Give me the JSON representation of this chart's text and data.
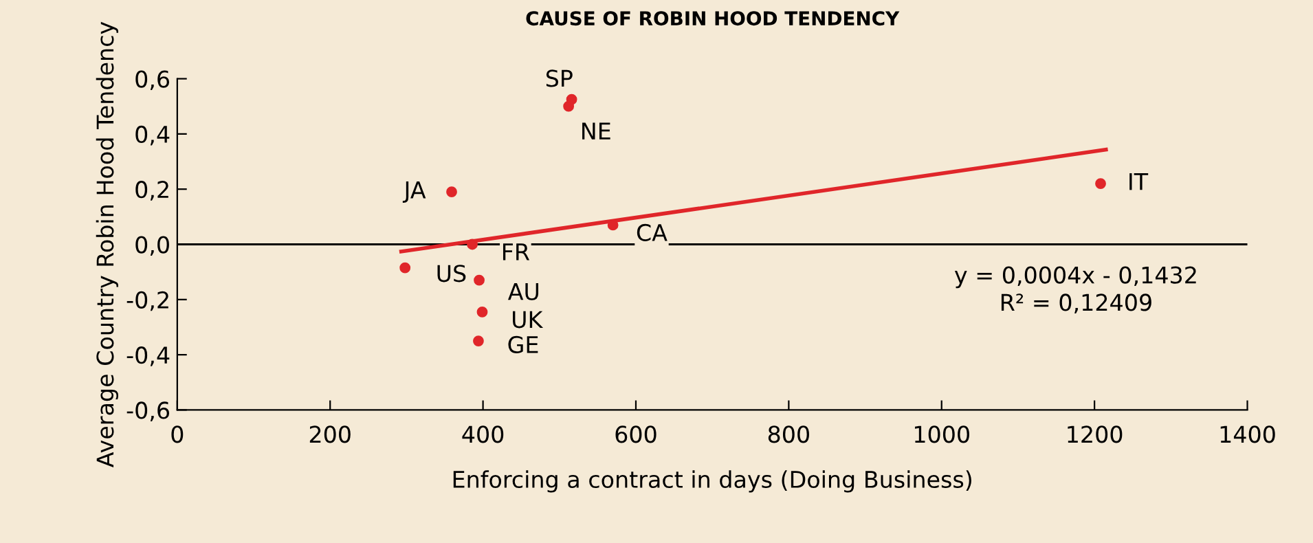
{
  "chart_data": {
    "type": "scatter",
    "title": "CAUSE OF ROBIN HOOD TENDENCY",
    "xlabel": "Enforcing a contract in days (Doing Business)",
    "ylabel": "Average Country Robin Hood Tendency",
    "xlim": [
      0,
      1400
    ],
    "xticks": [
      0,
      200,
      400,
      600,
      800,
      1000,
      1200,
      1400
    ],
    "ylim": [
      -0.6,
      0.6
    ],
    "yticks": [
      {
        "value": -0.6,
        "label": "-0,6"
      },
      {
        "value": -0.4,
        "label": "-0,4"
      },
      {
        "value": -0.2,
        "label": "-0,2"
      },
      {
        "value": 0.0,
        "label": "0,0"
      },
      {
        "value": 0.2,
        "label": "0,2"
      },
      {
        "value": 0.4,
        "label": "0,4"
      },
      {
        "value": 0.6,
        "label": "0,6"
      }
    ],
    "grid": false,
    "legend": false,
    "series": [
      {
        "marker": "circle",
        "color": "#e0262a",
        "x": [
          298,
          359,
          386,
          395,
          399,
          394,
          516,
          512,
          570,
          1208
        ],
        "values": [
          -0.085,
          0.19,
          0.0,
          -0.13,
          -0.245,
          -0.35,
          0.525,
          0.5,
          0.07,
          0.22
        ]
      },
      {
        "type": "line",
        "color": "#e0262a",
        "line_style": "solid",
        "x": [
          293,
          1215
        ],
        "values": [
          -0.026,
          0.343
        ]
      }
    ],
    "ref_lines": [
      {
        "axis": "y",
        "value": 0,
        "color": "#000000"
      }
    ],
    "annotations": [
      {
        "text": "US",
        "x": 298,
        "y": -0.085
      },
      {
        "text": "JA",
        "x": 359,
        "y": 0.19
      },
      {
        "text": "FR",
        "x": 386,
        "y": 0.0
      },
      {
        "text": "AU",
        "x": 395,
        "y": -0.13
      },
      {
        "text": "UK",
        "x": 399,
        "y": -0.245
      },
      {
        "text": "GE",
        "x": 394,
        "y": -0.35
      },
      {
        "text": "SP",
        "x": 516,
        "y": 0.525
      },
      {
        "text": "NE",
        "x": 512,
        "y": 0.5
      },
      {
        "text": "CA",
        "x": 570,
        "y": 0.07
      },
      {
        "text": "IT",
        "x": 1208,
        "y": 0.22
      },
      "y = 0,0004x - 0,1432\nR² = 0,12409"
    ]
  }
}
